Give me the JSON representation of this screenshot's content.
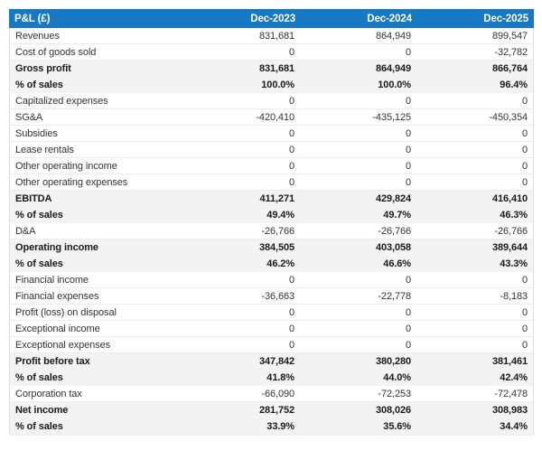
{
  "colors": {
    "header_bg": "#1779c2",
    "header_text": "#ffffff",
    "subtotal_bg": "#f3f3f3",
    "row_divider": "#ececec",
    "body_text": "#333333"
  },
  "chart_data": {
    "type": "table",
    "title": "P&L (£)",
    "columns": [
      "Dec-2023",
      "Dec-2024",
      "Dec-2025"
    ],
    "rows": [
      {
        "label": "Revenues",
        "values": [
          "831,681",
          "864,949",
          "899,547"
        ],
        "style": "normal"
      },
      {
        "label": "Cost of goods sold",
        "values": [
          "0",
          "0",
          "-32,782"
        ],
        "style": "normal"
      },
      {
        "label": "Gross profit",
        "values": [
          "831,681",
          "864,949",
          "866,764"
        ],
        "style": "subtotal"
      },
      {
        "label": "% of sales",
        "values": [
          "100.0%",
          "100.0%",
          "96.4%"
        ],
        "style": "subtotal"
      },
      {
        "label": "Capitalized expenses",
        "values": [
          "0",
          "0",
          "0"
        ],
        "style": "normal"
      },
      {
        "label": "SG&A",
        "values": [
          "-420,410",
          "-435,125",
          "-450,354"
        ],
        "style": "normal"
      },
      {
        "label": "Subsidies",
        "values": [
          "0",
          "0",
          "0"
        ],
        "style": "normal"
      },
      {
        "label": "Lease rentals",
        "values": [
          "0",
          "0",
          "0"
        ],
        "style": "normal"
      },
      {
        "label": "Other operating income",
        "values": [
          "0",
          "0",
          "0"
        ],
        "style": "normal"
      },
      {
        "label": "Other operating expenses",
        "values": [
          "0",
          "0",
          "0"
        ],
        "style": "normal"
      },
      {
        "label": "EBITDA",
        "values": [
          "411,271",
          "429,824",
          "416,410"
        ],
        "style": "subtotal"
      },
      {
        "label": "% of sales",
        "values": [
          "49.4%",
          "49.7%",
          "46.3%"
        ],
        "style": "subtotal"
      },
      {
        "label": "D&A",
        "values": [
          "-26,766",
          "-26,766",
          "-26,766"
        ],
        "style": "normal"
      },
      {
        "label": "Operating income",
        "values": [
          "384,505",
          "403,058",
          "389,644"
        ],
        "style": "subtotal"
      },
      {
        "label": "% of sales",
        "values": [
          "46.2%",
          "46.6%",
          "43.3%"
        ],
        "style": "subtotal"
      },
      {
        "label": "Financial income",
        "values": [
          "0",
          "0",
          "0"
        ],
        "style": "normal"
      },
      {
        "label": "Financial expenses",
        "values": [
          "-36,663",
          "-22,778",
          "-8,183"
        ],
        "style": "normal"
      },
      {
        "label": "Profit (loss) on disposal",
        "values": [
          "0",
          "0",
          "0"
        ],
        "style": "normal"
      },
      {
        "label": "Exceptional income",
        "values": [
          "0",
          "0",
          "0"
        ],
        "style": "normal"
      },
      {
        "label": "Exceptional expenses",
        "values": [
          "0",
          "0",
          "0"
        ],
        "style": "normal"
      },
      {
        "label": "Profit before tax",
        "values": [
          "347,842",
          "380,280",
          "381,461"
        ],
        "style": "subtotal"
      },
      {
        "label": "% of sales",
        "values": [
          "41.8%",
          "44.0%",
          "42.4%"
        ],
        "style": "subtotal"
      },
      {
        "label": "Corporation tax",
        "values": [
          "-66,090",
          "-72,253",
          "-72,478"
        ],
        "style": "normal"
      },
      {
        "label": "Net income",
        "values": [
          "281,752",
          "308,026",
          "308,983"
        ],
        "style": "subtotal"
      },
      {
        "label": "% of sales",
        "values": [
          "33.9%",
          "35.6%",
          "34.4%"
        ],
        "style": "subtotal"
      }
    ]
  }
}
